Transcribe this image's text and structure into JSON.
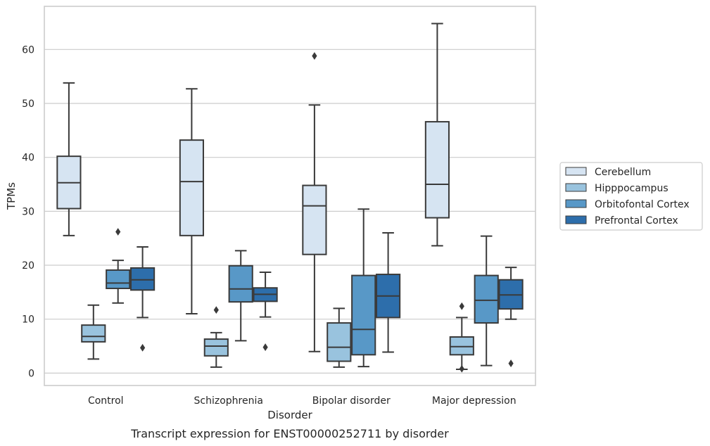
{
  "chart_data": {
    "type": "box",
    "xlabel": "Disorder",
    "ylabel": "TPMs",
    "caption": "Transcript expression for ENST00000252711 by disorder",
    "ylim": [
      -2.3,
      68
    ],
    "yticks": [
      0,
      10,
      20,
      30,
      40,
      50,
      60
    ],
    "grid": "horizontal",
    "legend_position": "right",
    "categories": [
      "Control",
      "Schizophrenia",
      "Bipolar disorder",
      "Major depression"
    ],
    "series": [
      {
        "name": "Cerebellum",
        "color": "#d6e4f2",
        "boxes": [
          {
            "whisker_low": 25.5,
            "q1": 30.5,
            "median": 35.3,
            "q3": 40.2,
            "whisker_high": 53.8,
            "outliers": []
          },
          {
            "whisker_low": 11.0,
            "q1": 25.5,
            "median": 35.5,
            "q3": 43.2,
            "whisker_high": 52.7,
            "outliers": []
          },
          {
            "whisker_low": 4.0,
            "q1": 22.0,
            "median": 31.0,
            "q3": 34.8,
            "whisker_high": 49.7,
            "outliers": [
              58.8
            ]
          },
          {
            "whisker_low": 23.6,
            "q1": 28.8,
            "median": 35.0,
            "q3": 46.6,
            "whisker_high": 64.8,
            "outliers": []
          }
        ]
      },
      {
        "name": "Hipppocampus",
        "color": "#99c3de",
        "boxes": [
          {
            "whisker_low": 2.6,
            "q1": 5.8,
            "median": 6.8,
            "q3": 8.9,
            "whisker_high": 12.6,
            "outliers": []
          },
          {
            "whisker_low": 1.1,
            "q1": 3.2,
            "median": 5.0,
            "q3": 6.3,
            "whisker_high": 7.5,
            "outliers": [
              11.7
            ]
          },
          {
            "whisker_low": 1.1,
            "q1": 2.2,
            "median": 4.8,
            "q3": 9.3,
            "whisker_high": 12.0,
            "outliers": []
          },
          {
            "whisker_low": 0.7,
            "q1": 3.4,
            "median": 4.9,
            "q3": 6.7,
            "whisker_high": 10.3,
            "outliers": [
              12.4,
              0.8
            ]
          }
        ]
      },
      {
        "name": "Orbitofontal Cortex",
        "color": "#5898c7",
        "boxes": [
          {
            "whisker_low": 13.0,
            "q1": 15.7,
            "median": 16.7,
            "q3": 19.1,
            "whisker_high": 20.9,
            "outliers": [
              26.2
            ]
          },
          {
            "whisker_low": 6.0,
            "q1": 13.2,
            "median": 15.6,
            "q3": 19.9,
            "whisker_high": 22.7,
            "outliers": []
          },
          {
            "whisker_low": 1.2,
            "q1": 3.4,
            "median": 8.1,
            "q3": 18.1,
            "whisker_high": 30.4,
            "outliers": []
          },
          {
            "whisker_low": 1.4,
            "q1": 9.3,
            "median": 13.5,
            "q3": 18.1,
            "whisker_high": 25.4,
            "outliers": []
          }
        ]
      },
      {
        "name": "Prefrontal Cortex",
        "color": "#2d6eab",
        "boxes": [
          {
            "whisker_low": 10.3,
            "q1": 15.4,
            "median": 17.3,
            "q3": 19.5,
            "whisker_high": 23.4,
            "outliers": [
              4.7
            ]
          },
          {
            "whisker_low": 10.4,
            "q1": 13.3,
            "median": 14.6,
            "q3": 15.8,
            "whisker_high": 18.7,
            "outliers": [
              4.8
            ]
          },
          {
            "whisker_low": 3.9,
            "q1": 10.3,
            "median": 14.3,
            "q3": 18.3,
            "whisker_high": 26.0,
            "outliers": []
          },
          {
            "whisker_low": 10.0,
            "q1": 11.9,
            "median": 14.5,
            "q3": 17.3,
            "whisker_high": 19.6,
            "outliers": [
              1.8
            ]
          }
        ]
      }
    ]
  },
  "colors": {
    "grid": "#cccccc",
    "frame": "#cccccc",
    "box_edge": "#3a3a3a",
    "text": "#262626"
  }
}
